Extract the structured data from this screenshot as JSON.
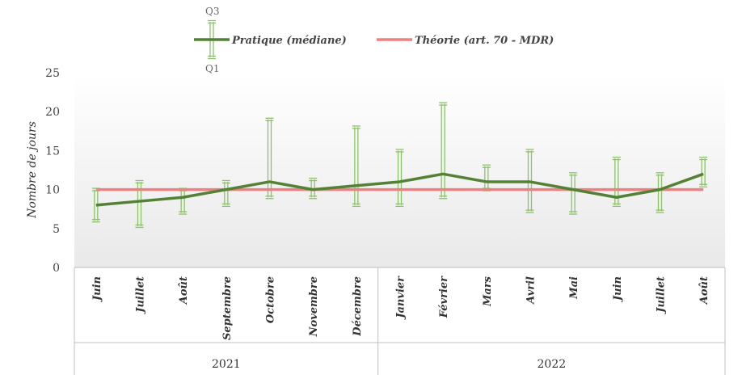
{
  "chart_data": {
    "type": "line",
    "ylabel": "Nombre de jours",
    "ylim": [
      0,
      25
    ],
    "yticks": [
      0,
      5,
      10,
      15,
      20,
      25
    ],
    "categories": [
      "Juin",
      "Juillet",
      "Août",
      "Septembre",
      "Octobre",
      "Novembre",
      "Décembre",
      "Janvier",
      "Février",
      "Mars",
      "Avril",
      "Mai",
      "Juin",
      "Juillet",
      "Août"
    ],
    "groups": [
      {
        "label": "2021",
        "count": 7
      },
      {
        "label": "2022",
        "count": 8
      }
    ],
    "series": [
      {
        "name": "Pratique (médiane)",
        "color": "#548235",
        "values": [
          8,
          8.5,
          9,
          10,
          11,
          10,
          10.5,
          11,
          12,
          11,
          11,
          10,
          9,
          10,
          12
        ],
        "q1": [
          6,
          5.3,
          7,
          8,
          9,
          9,
          8,
          8,
          9,
          10,
          7.2,
          7,
          8,
          7.2,
          10.5
        ],
        "q3": [
          10,
          11,
          10,
          11,
          19,
          11.3,
          18,
          15,
          21,
          13,
          15,
          12,
          14,
          12,
          14
        ]
      },
      {
        "name": "Théorie (art. 70 - MDR)",
        "color": "#f08080",
        "values": [
          10,
          10,
          10,
          10,
          10,
          10,
          10,
          10,
          10,
          10,
          10,
          10,
          10,
          10,
          10
        ]
      }
    ],
    "legend": {
      "position": "top",
      "q3_label": "Q3",
      "q1_label": "Q1"
    },
    "errorbar_color": "#8cc26a"
  }
}
